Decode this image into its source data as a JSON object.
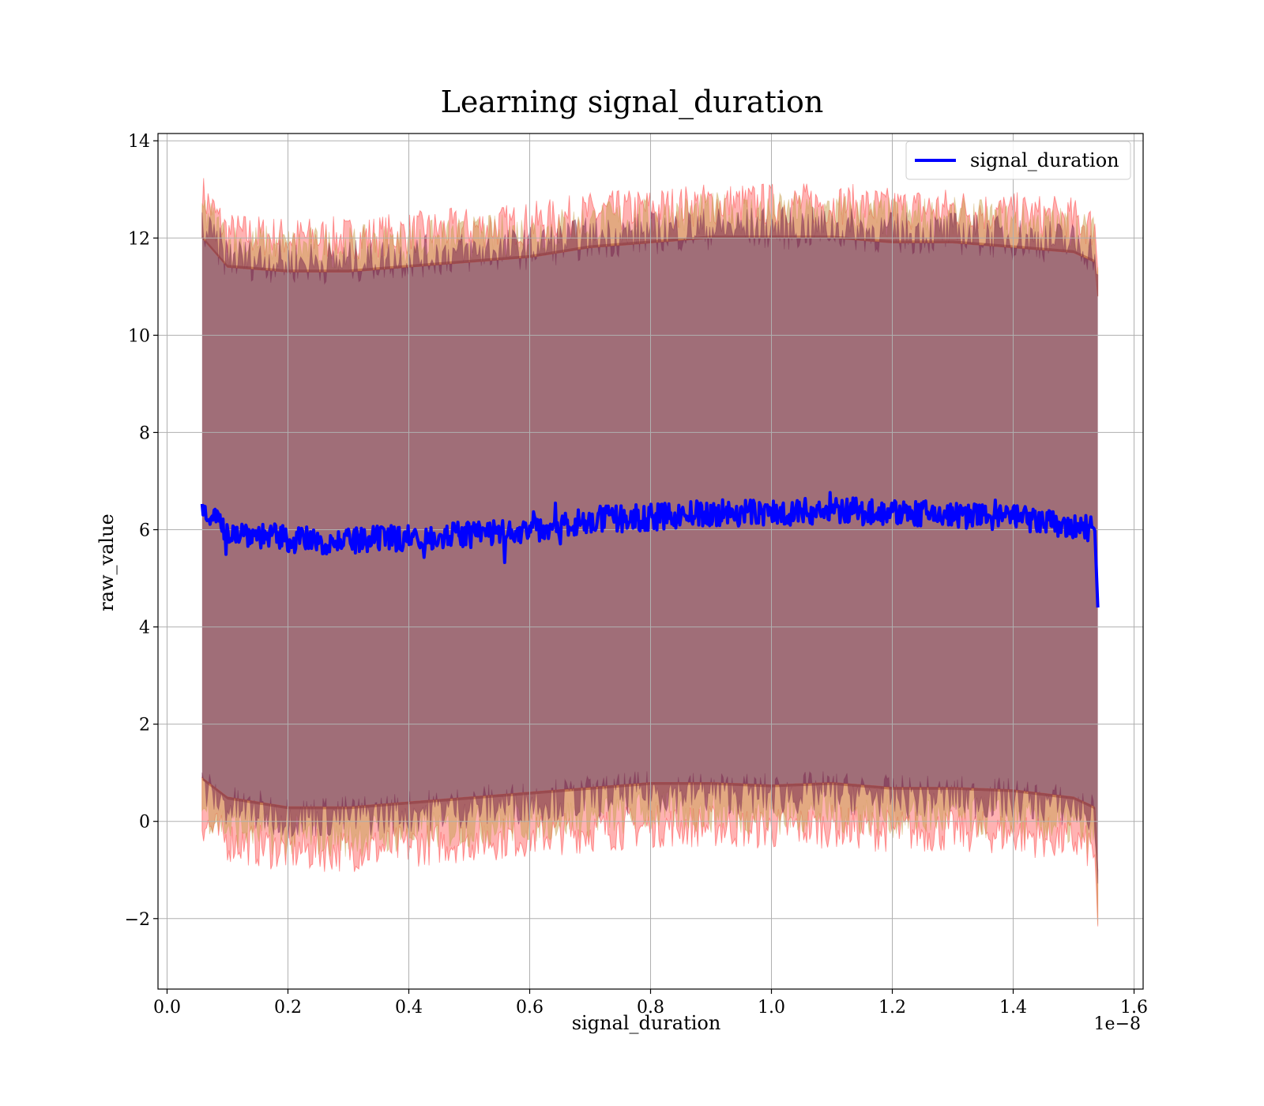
{
  "chart_data": {
    "type": "line",
    "title": "Learning signal_duration",
    "xlabel": "signal_duration",
    "ylabel": "raw_value",
    "x_offset_label": "1e−8",
    "xlim": [
      -0.015,
      1.615
    ],
    "ylim": [
      -3.45,
      14.15
    ],
    "x_ticks": [
      0.0,
      0.2,
      0.4,
      0.6,
      0.8,
      1.0,
      1.2,
      1.4,
      1.6
    ],
    "x_tick_labels": [
      "0.0",
      "0.2",
      "0.4",
      "0.6",
      "0.8",
      "1.0",
      "1.2",
      "1.4",
      "1.6"
    ],
    "y_ticks": [
      -2,
      0,
      2,
      4,
      6,
      8,
      10,
      12,
      14
    ],
    "y_tick_labels": [
      "−2",
      "0",
      "2",
      "4",
      "6",
      "8",
      "10",
      "12",
      "14"
    ],
    "grid": true,
    "legend": {
      "position": "top-right",
      "entries": [
        "signal_duration"
      ]
    },
    "x": [
      0.058,
      0.1,
      0.2,
      0.3,
      0.4,
      0.5,
      0.6,
      0.7,
      0.8,
      0.9,
      1.0,
      1.1,
      1.2,
      1.3,
      1.4,
      1.5,
      1.535,
      1.54
    ],
    "series": [
      {
        "name": "signal_duration",
        "values": [
          6.5,
          6.0,
          5.8,
          5.75,
          5.85,
          5.9,
          6.0,
          6.2,
          6.25,
          6.35,
          6.35,
          6.4,
          6.35,
          6.3,
          6.25,
          6.05,
          6.0,
          4.4
        ]
      }
    ],
    "bands": [
      {
        "upper": [
          12.9,
          12.1,
          12.0,
          12.0,
          12.1,
          12.2,
          12.3,
          12.5,
          12.6,
          12.7,
          12.7,
          12.7,
          12.6,
          12.6,
          12.5,
          12.4,
          12.2,
          11.5
        ],
        "lower": [
          0.0,
          -0.4,
          -0.6,
          -0.6,
          -0.5,
          -0.4,
          -0.3,
          -0.2,
          -0.1,
          -0.1,
          -0.15,
          -0.1,
          -0.2,
          -0.2,
          -0.25,
          -0.4,
          -0.6,
          -2.6
        ],
        "color": "#ff0000",
        "opacity": 0.3
      },
      {
        "upper": [
          12.6,
          11.9,
          11.8,
          11.8,
          11.9,
          12.0,
          12.1,
          12.3,
          12.4,
          12.5,
          12.5,
          12.5,
          12.4,
          12.4,
          12.3,
          12.2,
          12.0,
          11.3
        ],
        "lower": [
          0.3,
          -0.1,
          -0.3,
          -0.3,
          -0.2,
          -0.1,
          0.0,
          0.1,
          0.2,
          0.2,
          0.15,
          0.2,
          0.1,
          0.1,
          0.05,
          -0.1,
          -0.3,
          -2.0
        ],
        "color": "#c8a050",
        "opacity": 0.5
      },
      {
        "upper": [
          12.2,
          11.6,
          11.5,
          11.5,
          11.6,
          11.7,
          11.8,
          12.0,
          12.1,
          12.2,
          12.2,
          12.2,
          12.1,
          12.1,
          12.0,
          11.9,
          11.7,
          11.0
        ],
        "lower": [
          0.7,
          0.3,
          0.1,
          0.1,
          0.2,
          0.3,
          0.4,
          0.5,
          0.6,
          0.6,
          0.55,
          0.6,
          0.5,
          0.5,
          0.45,
          0.3,
          0.1,
          -1.2
        ],
        "color": "#7a2a50",
        "opacity": 0.55
      }
    ],
    "colors": {
      "line": "#0000ff",
      "fill_core": "#a06e78"
    }
  }
}
